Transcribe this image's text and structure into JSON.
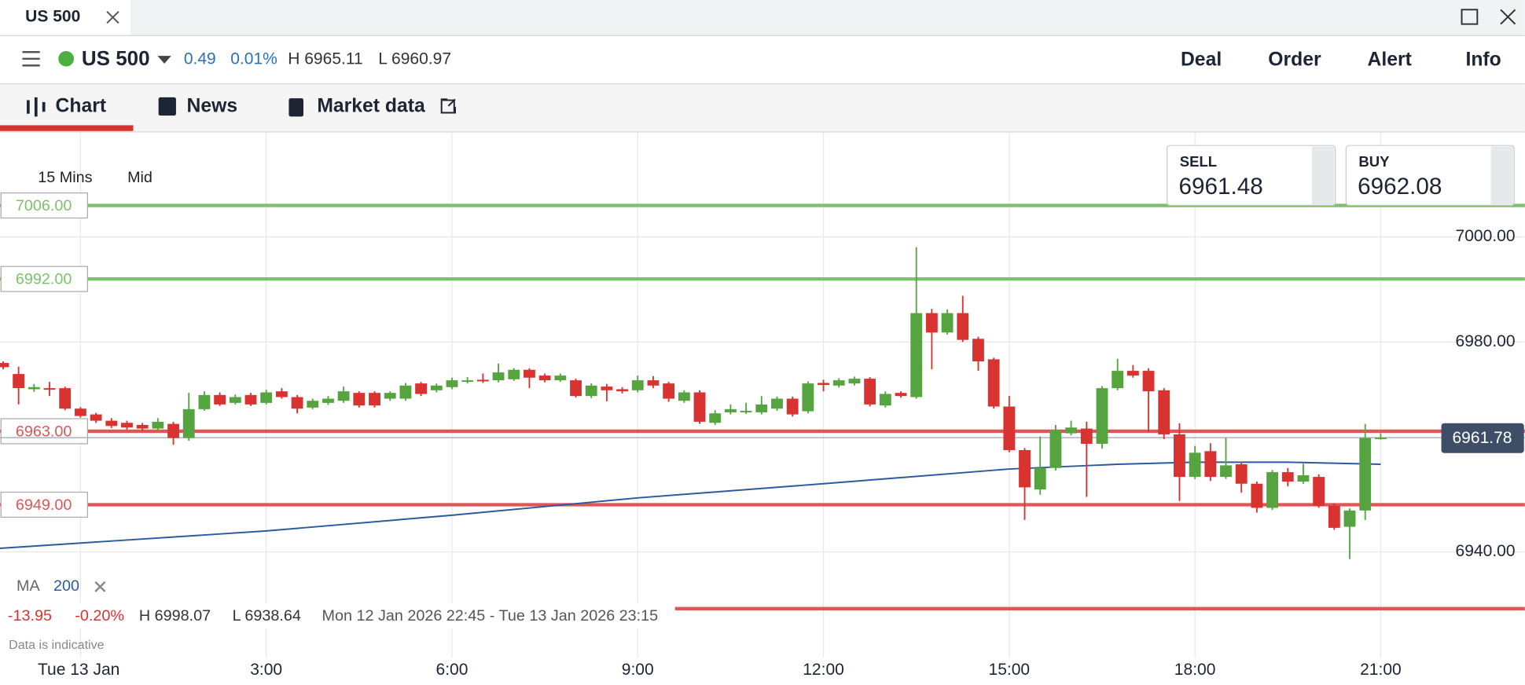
{
  "window": {
    "tab": "US 500"
  },
  "header": {
    "symbol": "US 500",
    "change": "0.49",
    "change_pct": "0.01%",
    "high": "H 6965.11",
    "low": "L 6960.97",
    "menu": [
      "Deal",
      "Order",
      "Alert",
      "Info"
    ]
  },
  "tabs": [
    "Chart",
    "News",
    "Market data"
  ],
  "toolbar": {
    "interval": "15 Mins",
    "price_type": "Mid"
  },
  "quote": {
    "sell_label": "SELL",
    "sell": "6961.48",
    "buy_label": "BUY",
    "buy": "6962.08"
  },
  "indicator": {
    "name": "MA",
    "period": "200"
  },
  "summary": {
    "change": "-13.95",
    "change_pct": "-0.20%",
    "high": "H 6998.07",
    "low": "L 6938.64",
    "range": "Mon 12 Jan 2026 22:45 - Tue 13 Jan 2026 23:15"
  },
  "footer_note": "Data is indicative",
  "chart_data": {
    "type": "candlestick",
    "grid": true,
    "up_color": "#55a43f",
    "down_color": "#d93331",
    "xlim": [
      -1.3,
      23.33
    ],
    "ylim": [
      6919.8,
      7020
    ],
    "xticks": [
      {
        "value": 0,
        "label": "Tue 13 Jan"
      },
      {
        "value": 3,
        "label": "3:00"
      },
      {
        "value": 6,
        "label": "6:00"
      },
      {
        "value": 9,
        "label": "9:00"
      },
      {
        "value": 12,
        "label": "12:00"
      },
      {
        "value": 15,
        "label": "15:00"
      },
      {
        "value": 18,
        "label": "18:00"
      },
      {
        "value": 21,
        "label": "21:00"
      }
    ],
    "yticks": [
      {
        "value": 6940,
        "label": "6940.00"
      },
      {
        "value": 6980,
        "label": "6980.00"
      },
      {
        "value": 7000,
        "label": "7000.00"
      }
    ],
    "levels": [
      {
        "value": 7006,
        "label": "7006.00",
        "color": "#7cc26a"
      },
      {
        "value": 6992,
        "label": "6992.00",
        "color": "#7cc26a"
      },
      {
        "value": 6963,
        "label": "6963.00",
        "color": "#e05555"
      },
      {
        "value": 6949,
        "label": "6949.00",
        "color": "#e05555"
      },
      {
        "value": 6929.2,
        "color": "#e05555"
      }
    ],
    "last_price": 6961.78,
    "ma": {
      "color": "#2b5a9e",
      "x": [
        -1.3,
        3,
        6,
        9,
        12,
        15,
        16.75,
        18,
        19.5,
        21
      ],
      "values": [
        6940.7,
        6944,
        6947,
        6950.3,
        6953,
        6955.8,
        6956.7,
        6957.1,
        6957.1,
        6956.7
      ]
    },
    "candles": [
      {
        "x": -1.25,
        "o": 6976,
        "h": 6976.3,
        "l": 6974.8,
        "c": 6975.2
      },
      {
        "x": -1,
        "o": 6973.9,
        "h": 6975.3,
        "l": 6968.1,
        "c": 6971.2
      },
      {
        "x": -0.75,
        "o": 6971,
        "h": 6972,
        "l": 6970.5,
        "c": 6971.4
      },
      {
        "x": -0.5,
        "o": 6971.2,
        "h": 6972.4,
        "l": 6969.7,
        "c": 6970.9
      },
      {
        "x": -0.25,
        "o": 6971.2,
        "h": 6971.5,
        "l": 6967,
        "c": 6967.3
      },
      {
        "x": 0,
        "o": 6967.3,
        "h": 6967.6,
        "l": 6965.6,
        "c": 6965.9
      },
      {
        "x": 0.25,
        "o": 6966.2,
        "h": 6966.5,
        "l": 6964.6,
        "c": 6965
      },
      {
        "x": 0.5,
        "o": 6965,
        "h": 6965.5,
        "l": 6963.6,
        "c": 6964
      },
      {
        "x": 0.75,
        "o": 6964.6,
        "h": 6965,
        "l": 6963.3,
        "c": 6963.7
      },
      {
        "x": 1,
        "o": 6964.2,
        "h": 6964.6,
        "l": 6963,
        "c": 6963.5
      },
      {
        "x": 1.25,
        "o": 6963.5,
        "h": 6965.5,
        "l": 6963.2,
        "c": 6964.8
      },
      {
        "x": 1.5,
        "o": 6964.4,
        "h": 6964.8,
        "l": 6960.4,
        "c": 6961.7
      },
      {
        "x": 1.75,
        "o": 6961.7,
        "h": 6970.3,
        "l": 6961.2,
        "c": 6967.2
      },
      {
        "x": 2,
        "o": 6967.2,
        "h": 6970.6,
        "l": 6966.9,
        "c": 6969.9
      },
      {
        "x": 2.25,
        "o": 6969.9,
        "h": 6970.4,
        "l": 6967.8,
        "c": 6968.1
      },
      {
        "x": 2.5,
        "o": 6968.4,
        "h": 6970,
        "l": 6968.1,
        "c": 6969.5
      },
      {
        "x": 2.75,
        "o": 6969.9,
        "h": 6970.3,
        "l": 6967.8,
        "c": 6968.1
      },
      {
        "x": 3,
        "o": 6968.4,
        "h": 6970.9,
        "l": 6968.1,
        "c": 6970.4
      },
      {
        "x": 3.25,
        "o": 6970.6,
        "h": 6971.2,
        "l": 6969.2,
        "c": 6969.5
      },
      {
        "x": 3.5,
        "o": 6969.5,
        "h": 6969.9,
        "l": 6966.4,
        "c": 6967.3
      },
      {
        "x": 3.75,
        "o": 6967.5,
        "h": 6969.2,
        "l": 6967.2,
        "c": 6968.8
      },
      {
        "x": 4,
        "o": 6968.4,
        "h": 6969.7,
        "l": 6968,
        "c": 6969.2
      },
      {
        "x": 4.25,
        "o": 6968.8,
        "h": 6971.5,
        "l": 6968.4,
        "c": 6970.6
      },
      {
        "x": 4.5,
        "o": 6970.3,
        "h": 6970.6,
        "l": 6967.5,
        "c": 6967.9
      },
      {
        "x": 4.75,
        "o": 6970.3,
        "h": 6970.6,
        "l": 6967.5,
        "c": 6967.9
      },
      {
        "x": 5,
        "o": 6969.2,
        "h": 6970.6,
        "l": 6968.8,
        "c": 6970.3
      },
      {
        "x": 5.25,
        "o": 6969.2,
        "h": 6972.2,
        "l": 6968.8,
        "c": 6971.7
      },
      {
        "x": 5.5,
        "o": 6972.1,
        "h": 6972.4,
        "l": 6969.7,
        "c": 6970.1
      },
      {
        "x": 5.75,
        "o": 6970.8,
        "h": 6972.1,
        "l": 6970.4,
        "c": 6971.7
      },
      {
        "x": 6,
        "o": 6971.4,
        "h": 6973.2,
        "l": 6971,
        "c": 6972.7
      },
      {
        "x": 6.25,
        "o": 6972.4,
        "h": 6973.3,
        "l": 6972.1,
        "c": 6972.7
      },
      {
        "x": 6.5,
        "o": 6972.8,
        "h": 6974,
        "l": 6972.2,
        "c": 6972.5
      },
      {
        "x": 6.75,
        "o": 6972.7,
        "h": 6975.9,
        "l": 6972.3,
        "c": 6974.2
      },
      {
        "x": 7,
        "o": 6972.9,
        "h": 6975,
        "l": 6972.6,
        "c": 6974.7
      },
      {
        "x": 7.25,
        "o": 6974.7,
        "h": 6975,
        "l": 6971.2,
        "c": 6973.2
      },
      {
        "x": 7.5,
        "o": 6973.6,
        "h": 6974,
        "l": 6972.3,
        "c": 6972.7
      },
      {
        "x": 7.75,
        "o": 6972.7,
        "h": 6974,
        "l": 6972.4,
        "c": 6973.6
      },
      {
        "x": 8,
        "o": 6972.7,
        "h": 6973,
        "l": 6969.4,
        "c": 6969.7
      },
      {
        "x": 8.25,
        "o": 6969.7,
        "h": 6972.1,
        "l": 6969.3,
        "c": 6971.7
      },
      {
        "x": 8.5,
        "o": 6971.5,
        "h": 6972,
        "l": 6968.7,
        "c": 6970.8
      },
      {
        "x": 8.75,
        "o": 6971,
        "h": 6971.4,
        "l": 6970.2,
        "c": 6970.6
      },
      {
        "x": 9,
        "o": 6970.8,
        "h": 6973.6,
        "l": 6970.4,
        "c": 6972.7
      },
      {
        "x": 9.25,
        "o": 6972.7,
        "h": 6973.5,
        "l": 6971.2,
        "c": 6971.7
      },
      {
        "x": 9.5,
        "o": 6972.1,
        "h": 6972.4,
        "l": 6968.6,
        "c": 6969.2
      },
      {
        "x": 9.75,
        "o": 6968.8,
        "h": 6970.8,
        "l": 6968.4,
        "c": 6970.4
      },
      {
        "x": 10,
        "o": 6970.4,
        "h": 6970.8,
        "l": 6964.4,
        "c": 6964.8
      },
      {
        "x": 10.25,
        "o": 6964.6,
        "h": 6967,
        "l": 6964.2,
        "c": 6966.4
      },
      {
        "x": 10.5,
        "o": 6966.6,
        "h": 6968.1,
        "l": 6966.2,
        "c": 6967.2
      },
      {
        "x": 10.75,
        "o": 6966.6,
        "h": 6968.4,
        "l": 6966.3,
        "c": 6966.9
      },
      {
        "x": 11,
        "o": 6966.6,
        "h": 6969.7,
        "l": 6966.2,
        "c": 6968.1
      },
      {
        "x": 11.25,
        "o": 6967.3,
        "h": 6969.6,
        "l": 6966.9,
        "c": 6969.2
      },
      {
        "x": 11.5,
        "o": 6969.2,
        "h": 6969.6,
        "l": 6965.8,
        "c": 6966.2
      },
      {
        "x": 11.75,
        "o": 6966.8,
        "h": 6972.5,
        "l": 6966.4,
        "c": 6972.1
      },
      {
        "x": 12,
        "o": 6972.2,
        "h": 6972.8,
        "l": 6970.6,
        "c": 6971.8
      },
      {
        "x": 12.25,
        "o": 6971.7,
        "h": 6973.1,
        "l": 6971.3,
        "c": 6972.7
      },
      {
        "x": 12.5,
        "o": 6972.1,
        "h": 6973.4,
        "l": 6971.7,
        "c": 6973
      },
      {
        "x": 12.75,
        "o": 6973,
        "h": 6973.3,
        "l": 6967.7,
        "c": 6968.1
      },
      {
        "x": 13,
        "o": 6967.9,
        "h": 6970.6,
        "l": 6967.5,
        "c": 6970.1
      },
      {
        "x": 13.25,
        "o": 6970.3,
        "h": 6970.6,
        "l": 6969.4,
        "c": 6969.7
      },
      {
        "x": 13.5,
        "o": 6969.5,
        "h": 6998.07,
        "l": 6969.2,
        "c": 6985.5
      },
      {
        "x": 13.75,
        "o": 6985.5,
        "h": 6986.3,
        "l": 6974.8,
        "c": 6981.8
      },
      {
        "x": 14,
        "o": 6981.8,
        "h": 6986.2,
        "l": 6981.4,
        "c": 6985.5
      },
      {
        "x": 14.25,
        "o": 6985.5,
        "h": 6988.8,
        "l": 6980,
        "c": 6980.4
      },
      {
        "x": 14.5,
        "o": 6980.6,
        "h": 6981,
        "l": 6974.5,
        "c": 6976.3
      },
      {
        "x": 14.75,
        "o": 6976.7,
        "h": 6977,
        "l": 6967.3,
        "c": 6967.7
      },
      {
        "x": 15,
        "o": 6967.7,
        "h": 6969.7,
        "l": 6959,
        "c": 6959.4
      },
      {
        "x": 15.25,
        "o": 6959.4,
        "h": 6959.8,
        "l": 6946.1,
        "c": 6952.3
      },
      {
        "x": 15.5,
        "o": 6951.9,
        "h": 6962,
        "l": 6950.9,
        "c": 6956
      },
      {
        "x": 15.75,
        "o": 6956,
        "h": 6964.2,
        "l": 6955.5,
        "c": 6963.2
      },
      {
        "x": 16,
        "o": 6962.6,
        "h": 6965,
        "l": 6962.2,
        "c": 6963.7
      },
      {
        "x": 16.25,
        "o": 6963.5,
        "h": 6964.8,
        "l": 6950.5,
        "c": 6960.6
      },
      {
        "x": 16.5,
        "o": 6960.6,
        "h": 6971.6,
        "l": 6959.7,
        "c": 6971.2
      },
      {
        "x": 16.75,
        "o": 6971.2,
        "h": 6976.8,
        "l": 6970.8,
        "c": 6974.5
      },
      {
        "x": 17,
        "o": 6974.5,
        "h": 6975.6,
        "l": 6973.2,
        "c": 6973.6
      },
      {
        "x": 17.25,
        "o": 6974.5,
        "h": 6975,
        "l": 6962.8,
        "c": 6970.6
      },
      {
        "x": 17.5,
        "o": 6970.8,
        "h": 6971.2,
        "l": 6961.5,
        "c": 6962.4
      },
      {
        "x": 17.75,
        "o": 6962.4,
        "h": 6964.5,
        "l": 6949.7,
        "c": 6954.3
      },
      {
        "x": 18,
        "o": 6954.3,
        "h": 6960.2,
        "l": 6953.9,
        "c": 6958.9
      },
      {
        "x": 18.25,
        "o": 6959.2,
        "h": 6960.7,
        "l": 6953.5,
        "c": 6954.3
      },
      {
        "x": 18.5,
        "o": 6954.3,
        "h": 6961.7,
        "l": 6953.9,
        "c": 6956.5
      },
      {
        "x": 18.75,
        "o": 6956.7,
        "h": 6957.2,
        "l": 6951.3,
        "c": 6953
      },
      {
        "x": 19,
        "o": 6953,
        "h": 6953.4,
        "l": 6947.5,
        "c": 6948.4
      },
      {
        "x": 19.25,
        "o": 6948.4,
        "h": 6955.6,
        "l": 6948,
        "c": 6955.2
      },
      {
        "x": 19.5,
        "o": 6955.2,
        "h": 6956,
        "l": 6952.5,
        "c": 6953.4
      },
      {
        "x": 19.75,
        "o": 6953.4,
        "h": 6956.8,
        "l": 6953,
        "c": 6954.6
      },
      {
        "x": 20,
        "o": 6954.3,
        "h": 6954.8,
        "l": 6948.4,
        "c": 6948.8
      },
      {
        "x": 20.25,
        "o": 6948.8,
        "h": 6949.3,
        "l": 6944.2,
        "c": 6944.6
      },
      {
        "x": 20.5,
        "o": 6944.8,
        "h": 6948.3,
        "l": 6938.64,
        "c": 6947.9
      },
      {
        "x": 20.75,
        "o": 6947.9,
        "h": 6964.4,
        "l": 6946.1,
        "c": 6961.7
      },
      {
        "x": 21,
        "o": 6961.7,
        "h": 6962.6,
        "l": 6961.4,
        "c": 6961.78
      }
    ]
  }
}
